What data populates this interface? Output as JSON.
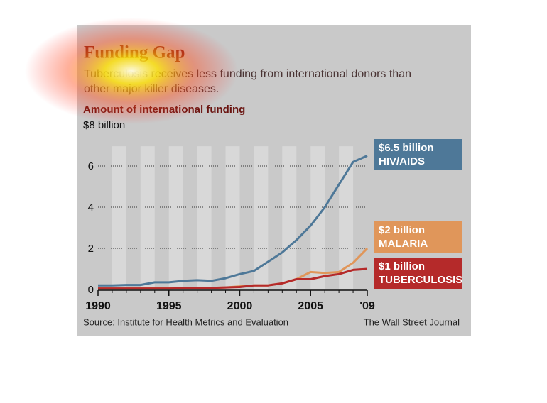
{
  "chart_data": {
    "type": "line",
    "title": "Funding Gap",
    "subtitle": "Tuberculosis receives less funding from international donors than other major killer diseases.",
    "y_label": "Amount of international funding",
    "source": "Source: Institute for Health Metrics and Evaluation",
    "credit": "The Wall Street Journal",
    "x": [
      1990,
      1991,
      1992,
      1993,
      1994,
      1995,
      1996,
      1997,
      1998,
      1999,
      2000,
      2001,
      2002,
      2003,
      2004,
      2005,
      2006,
      2007,
      2008,
      2009
    ],
    "series": [
      {
        "name": "HIV/AIDS",
        "color": "#4e7898",
        "end_label": "$6.5 billion",
        "values": [
          0.2,
          0.2,
          0.22,
          0.22,
          0.35,
          0.35,
          0.42,
          0.45,
          0.42,
          0.55,
          0.75,
          0.9,
          1.35,
          1.8,
          2.4,
          3.1,
          4.0,
          5.1,
          6.2,
          6.5
        ]
      },
      {
        "name": "MALARIA",
        "color": "#e0965a",
        "end_label": "$2 billion",
        "values": [
          0.05,
          0.05,
          0.05,
          0.05,
          0.06,
          0.06,
          0.07,
          0.08,
          0.08,
          0.1,
          0.15,
          0.2,
          0.2,
          0.3,
          0.5,
          0.85,
          0.8,
          0.85,
          1.3,
          2.0
        ]
      },
      {
        "name": "TUBERCULOSIS",
        "color": "#b52a2a",
        "end_label": "$1 billion",
        "values": [
          0.05,
          0.05,
          0.05,
          0.05,
          0.05,
          0.05,
          0.06,
          0.07,
          0.08,
          0.1,
          0.12,
          0.2,
          0.2,
          0.3,
          0.5,
          0.5,
          0.65,
          0.75,
          0.95,
          1.0
        ]
      }
    ],
    "xlim": [
      1990,
      2009
    ],
    "xticks": [
      1990,
      1995,
      2000,
      2005,
      {
        "value": 2009,
        "label": "'09"
      }
    ],
    "ylim": [
      0,
      8
    ],
    "yticks": [
      0,
      2,
      4,
      6,
      {
        "value": 8,
        "label": "$8 billion"
      }
    ],
    "grid": true
  }
}
